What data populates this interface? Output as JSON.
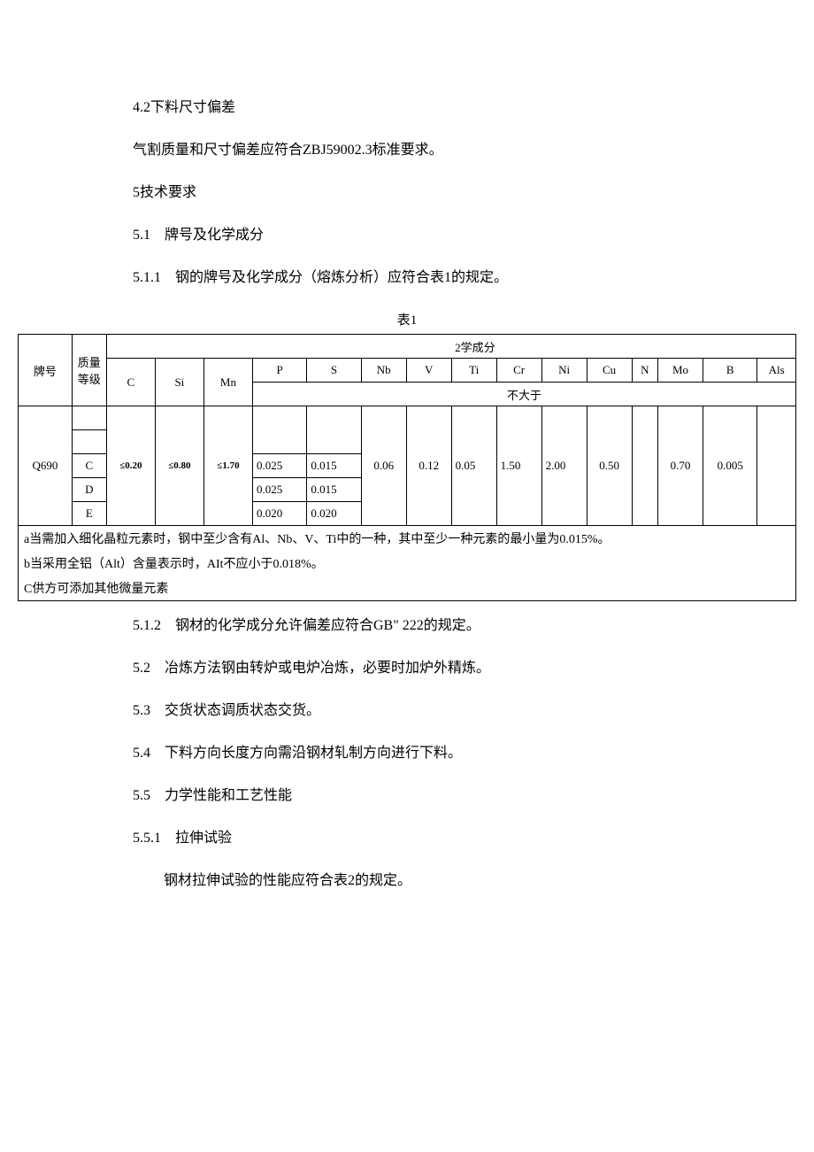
{
  "colors": {
    "background": "#ffffff",
    "text": "#000000",
    "border": "#000000"
  },
  "typography": {
    "body_fontsize": 16,
    "table_fontsize": 13,
    "note_fontsize": 14
  },
  "paragraphs": {
    "p1": "4.2下料尺寸偏差",
    "p2": "气割质量和尺寸偏差应符合ZBJ59002.3标准要求。",
    "p3": "5技术要求",
    "p4": "5.1　牌号及化学成分",
    "p5": "5.1.1　钢的牌号及化学成分（熔炼分析）应符合表1的规定。",
    "p6": "5.1.2　钢材的化学成分允许偏差应符合GB\" 222的规定。",
    "p7": "5.2　冶炼方法钢由转炉或电炉冶炼，必要时加炉外精炼。",
    "p8": "5.3　交货状态调质状态交货。",
    "p9": "5.4　下料方向长度方向需沿钢材轧制方向进行下料。",
    "p10": "5.5　力学性能和工艺性能",
    "p11": "5.5.1　拉伸试验",
    "p12": "钢材拉伸试验的性能应符合表2的规定。"
  },
  "table1": {
    "title": "表1",
    "type": "table",
    "header": {
      "col_grade": "牌号",
      "col_quality": "质量等级",
      "chem_label": "2学成分",
      "c": "C",
      "si": "Si",
      "mn": "Mn",
      "p": "P",
      "s": "S",
      "nb": "Nb",
      "v": "V",
      "ti": "Ti",
      "cr": "Cr",
      "ni": "Ni",
      "cu": "Cu",
      "n": "N",
      "mo": "Mo",
      "b": "B",
      "als": "Als",
      "not_greater": "不大于"
    },
    "rows": {
      "grade": "Q690",
      "quality_levels": [
        "",
        "",
        "C",
        "D",
        "E"
      ],
      "c_val": "≤0.20",
      "si_val": "≤0.80",
      "mn_val": "≤1.70",
      "p_vals": [
        "",
        "",
        "0.025",
        "0.025",
        "0.020"
      ],
      "s_vals": [
        "",
        "",
        "0.015",
        "0.015",
        "0.020"
      ],
      "nb": "0.06",
      "v": "0.12",
      "ti": "0.05",
      "cr": "1.50",
      "ni": "2.00",
      "cu": "0.50",
      "n": "",
      "mo": "0.70",
      "b": "0.005",
      "als": ""
    },
    "notes": {
      "a": "a当需加入细化晶粒元素时，钢中至少含有Al、Nb、V、Ti中的一种，其中至少一种元素的最小量为0.015%。",
      "b": "b当采用全铝（Alt）含量表示时，AIt不应小于0.018%。",
      "c": "C供方可添加其他微量元素"
    }
  }
}
